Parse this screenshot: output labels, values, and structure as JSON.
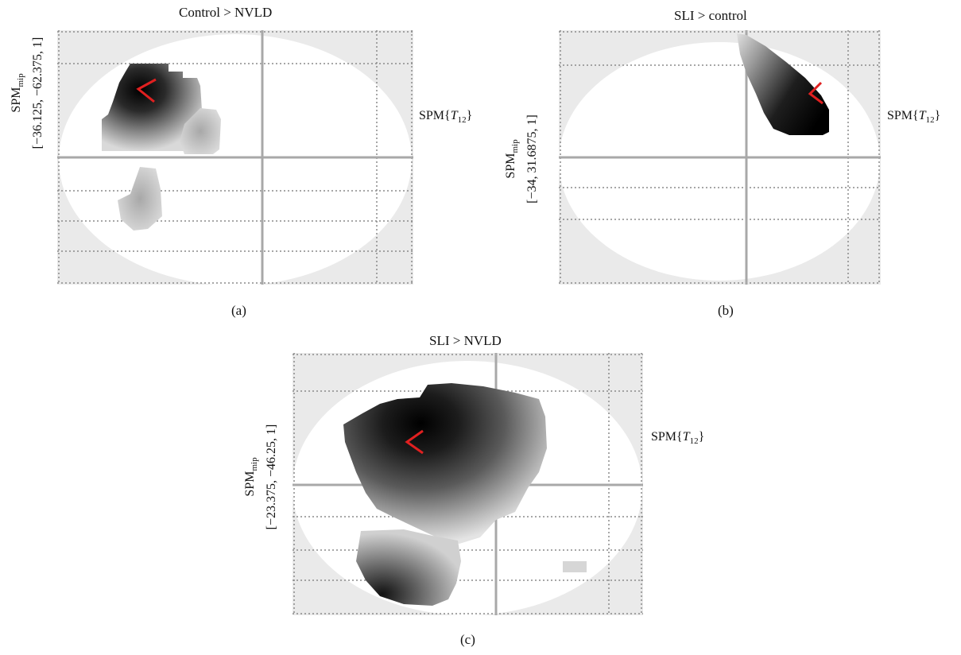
{
  "colors": {
    "background_outside": "#eaeaea",
    "brain_fill": "#ffffff",
    "grid_dotted": "#8a8a8a",
    "crosshair": "#a8a8a8",
    "activation_peak": "#000000",
    "cursor_marker": "#e02020"
  },
  "panels": [
    {
      "title": "Control > NVLD",
      "spm_label_base": "SPM",
      "spm_label_sub": "mip",
      "coordinates": "[−36.125, −62.375, 1]",
      "stat_label_base": "SPM{",
      "stat_label_var": "T",
      "stat_label_sub": "12",
      "stat_label_end": "}",
      "caption": "(a)"
    },
    {
      "title": "SLI > control",
      "spm_label_base": "SPM",
      "spm_label_sub": "mip",
      "coordinates": "[−34, 31.6875, 1]",
      "stat_label_base": "SPM{",
      "stat_label_var": "T",
      "stat_label_sub": "12",
      "stat_label_end": "}",
      "caption": "(b)"
    },
    {
      "title": "SLI > NVLD",
      "spm_label_base": "SPM",
      "spm_label_sub": "mip",
      "coordinates": "[−23.375, −46.25, 1]",
      "stat_label_base": "SPM{",
      "stat_label_var": "T",
      "stat_label_sub": "12",
      "stat_label_end": "}",
      "caption": "(c)"
    }
  ]
}
